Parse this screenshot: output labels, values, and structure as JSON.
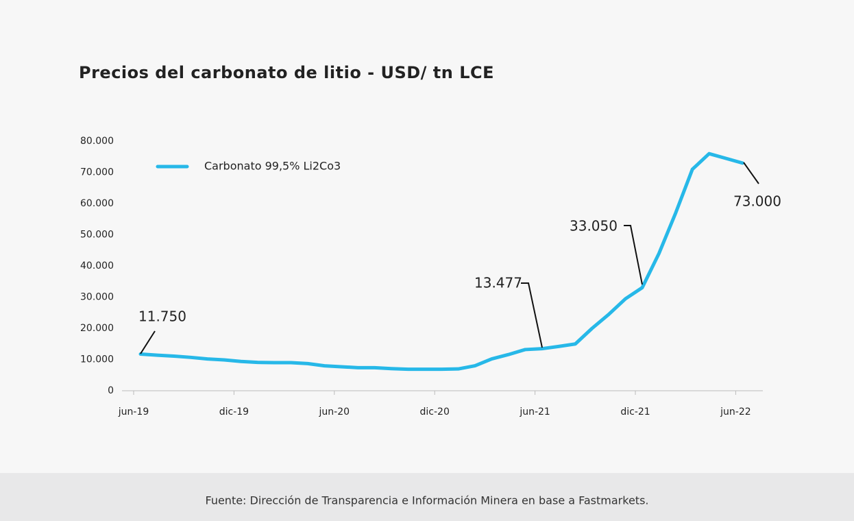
{
  "chart_data": {
    "type": "line",
    "title": "Precios del carbonato de litio - USD/ tn LCE",
    "source": "Fuente: Dirección de Transparencia e Información Minera en base a Fastmarkets.",
    "categories": [
      "jun-19",
      null,
      null,
      null,
      null,
      null,
      "dic-19",
      null,
      null,
      null,
      null,
      null,
      "jun-20",
      null,
      null,
      null,
      null,
      null,
      "dic-20",
      null,
      null,
      null,
      null,
      null,
      "jun-21",
      null,
      null,
      null,
      null,
      null,
      "dic-21",
      null,
      null,
      null,
      null,
      null,
      "jun-22"
    ],
    "series": [
      {
        "name": "Carbonato 99,5% Li2Co3",
        "color": "#27b8e8",
        "values": [
          11750,
          11400,
          11100,
          10700,
          10200,
          9900,
          9400,
          9100,
          9000,
          9000,
          8700,
          8000,
          7700,
          7400,
          7400,
          7100,
          6900,
          6900,
          6900,
          7000,
          8000,
          10200,
          11600,
          13200,
          13477,
          14200,
          15000,
          20000,
          24500,
          29500,
          33050,
          44000,
          57000,
          71000,
          76000,
          74500,
          73000
        ],
        "value_labels": [
          "11.750",
          null,
          null,
          null,
          null,
          null,
          null,
          null,
          null,
          null,
          null,
          null,
          null,
          null,
          null,
          null,
          null,
          null,
          null,
          null,
          null,
          null,
          null,
          null,
          "13.477",
          null,
          null,
          null,
          null,
          null,
          "33.050",
          null,
          null,
          null,
          null,
          null,
          "73.000"
        ]
      }
    ],
    "ylim": [
      0,
      80000
    ],
    "yticks": [
      0,
      {
        "value": 10000,
        "label": "10.000"
      },
      {
        "value": 20000,
        "label": "20.000"
      },
      {
        "value": 30000,
        "label": "30.000"
      },
      {
        "value": 40000,
        "label": "40.000"
      },
      {
        "value": 50000,
        "label": "50.000"
      },
      {
        "value": 60000,
        "label": "60.000"
      },
      {
        "value": 70000,
        "label": "70.000"
      },
      {
        "value": 80000,
        "label": "80.000"
      }
    ],
    "grid": false,
    "legend": "top-left"
  }
}
